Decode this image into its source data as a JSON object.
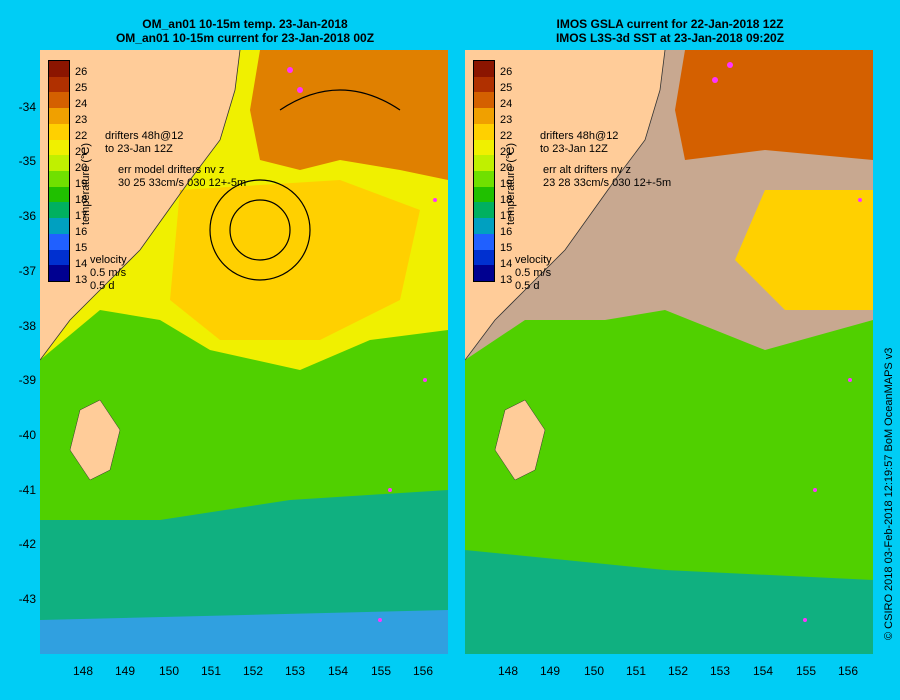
{
  "left_panel": {
    "title_line1": "OM_an01 10-15m temp. 23-Jan-2018",
    "title_line2": "OM_an01 10-15m current for 23-Jan-2018 00Z",
    "drifters_line1": "drifters 48h@12",
    "drifters_line2": "to 23-Jan 12Z",
    "err_line1": "err model drifters nv z",
    "err_line2": "30 25 33cm/s 030 12+-5m",
    "velocity_label": "velocity",
    "velocity_scale": "0.5 m/s",
    "velocity_time": "0.5 d"
  },
  "right_panel": {
    "title_line1": "IMOS GSLA current for 22-Jan-2018 12Z",
    "title_line2": "IMOS L3S-3d SST at 23-Jan-2018 09:20Z",
    "drifters_line1": "drifters 48h@12",
    "drifters_line2": "to 23-Jan 12Z",
    "err_line1": "err alt drifters nv z",
    "err_line2": "23 28 33cm/s 030 12+-5m",
    "velocity_label": "velocity",
    "velocity_scale": "0.5 m/s",
    "velocity_time": "0.5 d"
  },
  "colorbar": {
    "title": "temperature (°C)",
    "ticks": [
      "26",
      "25",
      "24",
      "23",
      "22",
      "21",
      "20",
      "19",
      "18",
      "17",
      "16",
      "15",
      "14",
      "13"
    ],
    "colors": [
      "#8b1500",
      "#b03000",
      "#d46000",
      "#f0a000",
      "#ffd000",
      "#f0f000",
      "#c0f000",
      "#70e000",
      "#20c000",
      "#00b060",
      "#00a0c0",
      "#2060ff",
      "#0030d0",
      "#000090"
    ]
  },
  "y_axis": [
    "-34",
    "-35",
    "-36",
    "-37",
    "-38",
    "-39",
    "-40",
    "-41",
    "-42",
    "-43"
  ],
  "x_axis": [
    "148",
    "149",
    "150",
    "151",
    "152",
    "153",
    "154",
    "155",
    "156"
  ],
  "credit": "© CSIRO 2018   03-Feb-2018 12:19:57 BoM OceanMAPS v3",
  "colors": {
    "background": "#00cdf5",
    "land": "#ffcc99",
    "missing_data": "#c8a890",
    "drifter": "#ff33ff"
  }
}
